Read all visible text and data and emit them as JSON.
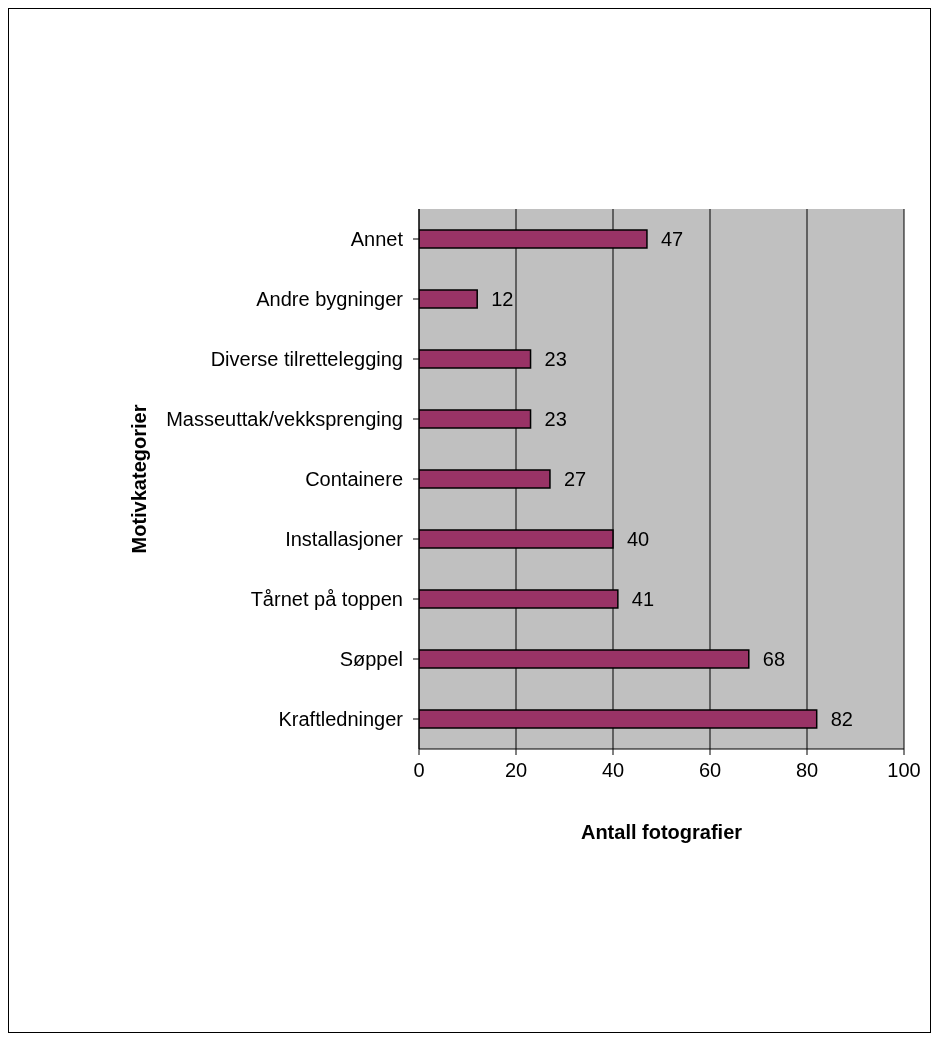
{
  "chart_data": {
    "type": "bar",
    "orientation": "horizontal",
    "xlabel": "Antall fotografier",
    "ylabel": "Motivkategorier",
    "categories": [
      "Annet",
      "Andre bygninger",
      "Diverse tilrettelegging",
      "Masseuttak/vekksprenging",
      "Containere",
      "Installasjoner",
      "Tårnet på toppen",
      "Søppel",
      "Kraftledninger"
    ],
    "values": [
      47,
      12,
      23,
      23,
      27,
      40,
      41,
      68,
      82
    ],
    "color": "#993366",
    "xlim": [
      0,
      100
    ],
    "xticks": [
      0,
      20,
      40,
      60,
      80,
      100
    ],
    "grid": "x",
    "data_labels": true
  }
}
